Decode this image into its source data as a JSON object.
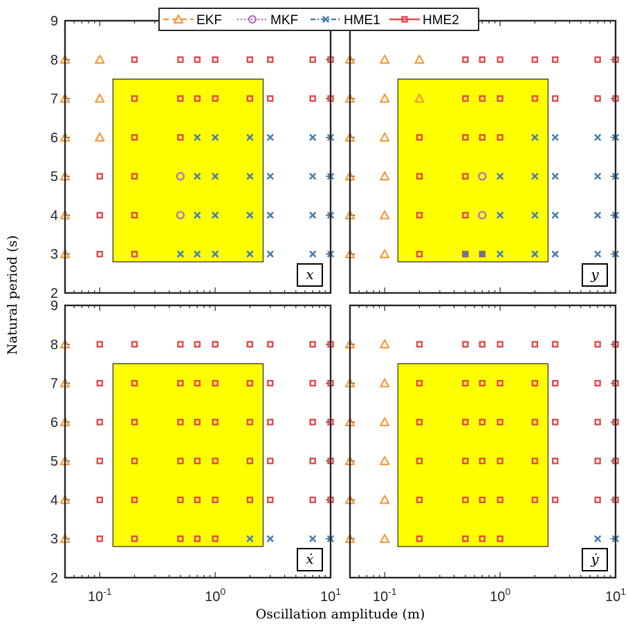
{
  "chart_data": {
    "type": "scatter",
    "layout": "2x2 panels",
    "xlabel": "Oscillation amplitude (m)",
    "ylabel": "Natural period (s)",
    "xscale": "log",
    "xlim": [
      0.05,
      10
    ],
    "ylim": [
      2,
      9
    ],
    "xticks": [
      0.1,
      1,
      10
    ],
    "xtick_labels": [
      {
        "base": "10",
        "exp": "-1"
      },
      {
        "base": "10",
        "exp": "0"
      },
      {
        "base": "10",
        "exp": "1"
      }
    ],
    "yticks": [
      2,
      3,
      4,
      5,
      6,
      7,
      8,
      9
    ],
    "legend": {
      "placement": "top-center",
      "entries": [
        {
          "key": "EKF",
          "label": "EKF",
          "color": "#F59A3E",
          "marker": "triangle",
          "line": "dashed"
        },
        {
          "key": "MKF",
          "label": "MKF",
          "color": "#B46EC0",
          "marker": "circle",
          "line": "dotted"
        },
        {
          "key": "HME1",
          "label": "HME1",
          "color": "#4A7FAE",
          "marker": "x",
          "line": "dashdot"
        },
        {
          "key": "HME2",
          "label": "HME2",
          "color": "#E04A4A",
          "marker": "square",
          "line": "solid"
        }
      ]
    },
    "region": {
      "x": [
        0.13,
        2.6
      ],
      "y": [
        2.8,
        7.5
      ],
      "color": "#FFFF00"
    },
    "panels": [
      {
        "label": "x",
        "points": {
          "EKF": [
            [
              0.05,
              3
            ],
            [
              0.05,
              4
            ],
            [
              0.05,
              5
            ],
            [
              0.05,
              6
            ],
            [
              0.05,
              7
            ],
            [
              0.05,
              8
            ],
            [
              0.1,
              6
            ],
            [
              0.1,
              7
            ],
            [
              0.1,
              8
            ]
          ],
          "MKF": [
            [
              0.5,
              4
            ],
            [
              0.5,
              5
            ]
          ],
          "HME1": [
            [
              0.5,
              3
            ],
            [
              0.7,
              3
            ],
            [
              1,
              3
            ],
            [
              2,
              3
            ],
            [
              3,
              3
            ],
            [
              7,
              3
            ],
            [
              10,
              3
            ],
            [
              0.7,
              4
            ],
            [
              1,
              4
            ],
            [
              2,
              4
            ],
            [
              3,
              4
            ],
            [
              7,
              4
            ],
            [
              10,
              4
            ],
            [
              0.7,
              5
            ],
            [
              1,
              5
            ],
            [
              2,
              5
            ],
            [
              3,
              5
            ],
            [
              7,
              5
            ],
            [
              10,
              5
            ],
            [
              0.7,
              6
            ],
            [
              1,
              6
            ],
            [
              2,
              6
            ],
            [
              3,
              6
            ],
            [
              7,
              6
            ],
            [
              10,
              6
            ]
          ],
          "HME2": [
            [
              0.1,
              3
            ],
            [
              0.2,
              3
            ],
            [
              0.1,
              4
            ],
            [
              0.2,
              4
            ],
            [
              0.1,
              5
            ],
            [
              0.2,
              5
            ],
            [
              0.2,
              6
            ],
            [
              0.5,
              6
            ],
            [
              0.2,
              7
            ],
            [
              0.5,
              7
            ],
            [
              0.7,
              7
            ],
            [
              1,
              7
            ],
            [
              2,
              7
            ],
            [
              3,
              7
            ],
            [
              7,
              7
            ],
            [
              10,
              7
            ],
            [
              0.2,
              8
            ],
            [
              0.5,
              8
            ],
            [
              0.7,
              8
            ],
            [
              1,
              8
            ],
            [
              2,
              8
            ],
            [
              3,
              8
            ],
            [
              7,
              8
            ],
            [
              10,
              8
            ]
          ]
        }
      },
      {
        "label": "y",
        "points": {
          "EKF": [
            [
              0.05,
              3
            ],
            [
              0.05,
              4
            ],
            [
              0.05,
              5
            ],
            [
              0.05,
              6
            ],
            [
              0.05,
              7
            ],
            [
              0.05,
              8
            ],
            [
              0.1,
              3
            ],
            [
              0.1,
              4
            ],
            [
              0.1,
              5
            ],
            [
              0.1,
              6
            ],
            [
              0.1,
              7
            ],
            [
              0.1,
              8
            ],
            [
              0.2,
              7
            ],
            [
              0.2,
              8
            ]
          ],
          "MKF": [
            [
              0.7,
              4
            ],
            [
              0.7,
              5
            ]
          ],
          "HME1": [
            [
              0.5,
              3
            ],
            [
              0.7,
              3
            ],
            [
              1,
              3
            ],
            [
              2,
              3
            ],
            [
              3,
              3
            ],
            [
              7,
              3
            ],
            [
              10,
              3
            ],
            [
              1,
              4
            ],
            [
              2,
              4
            ],
            [
              3,
              4
            ],
            [
              7,
              4
            ],
            [
              10,
              4
            ],
            [
              1,
              5
            ],
            [
              2,
              5
            ],
            [
              3,
              5
            ],
            [
              7,
              5
            ],
            [
              10,
              5
            ],
            [
              2,
              6
            ],
            [
              3,
              6
            ],
            [
              7,
              6
            ],
            [
              10,
              6
            ]
          ],
          "HME2": [
            [
              0.2,
              3
            ],
            [
              0.5,
              3
            ],
            [
              0.7,
              3
            ],
            [
              0.2,
              4
            ],
            [
              0.5,
              4
            ],
            [
              0.2,
              5
            ],
            [
              0.5,
              5
            ],
            [
              0.2,
              6
            ],
            [
              0.5,
              6
            ],
            [
              0.7,
              6
            ],
            [
              1,
              6
            ],
            [
              0.5,
              7
            ],
            [
              0.7,
              7
            ],
            [
              1,
              7
            ],
            [
              2,
              7
            ],
            [
              3,
              7
            ],
            [
              7,
              7
            ],
            [
              10,
              7
            ],
            [
              0.5,
              8
            ],
            [
              0.7,
              8
            ],
            [
              1,
              8
            ],
            [
              2,
              8
            ],
            [
              3,
              8
            ],
            [
              7,
              8
            ],
            [
              10,
              8
            ]
          ]
        }
      },
      {
        "label": "ẋ",
        "points": {
          "EKF": [
            [
              0.05,
              3
            ],
            [
              0.05,
              4
            ],
            [
              0.05,
              5
            ],
            [
              0.05,
              6
            ],
            [
              0.05,
              7
            ],
            [
              0.05,
              8
            ]
          ],
          "MKF": [],
          "HME1": [
            [
              2,
              3
            ],
            [
              3,
              3
            ],
            [
              7,
              3
            ],
            [
              10,
              3
            ]
          ],
          "HME2": [
            [
              0.1,
              3
            ],
            [
              0.2,
              3
            ],
            [
              0.5,
              3
            ],
            [
              0.7,
              3
            ],
            [
              1,
              3
            ],
            [
              0.1,
              4
            ],
            [
              0.2,
              4
            ],
            [
              0.5,
              4
            ],
            [
              0.7,
              4
            ],
            [
              1,
              4
            ],
            [
              2,
              4
            ],
            [
              3,
              4
            ],
            [
              7,
              4
            ],
            [
              10,
              4
            ],
            [
              0.1,
              5
            ],
            [
              0.2,
              5
            ],
            [
              0.5,
              5
            ],
            [
              0.7,
              5
            ],
            [
              1,
              5
            ],
            [
              2,
              5
            ],
            [
              3,
              5
            ],
            [
              7,
              5
            ],
            [
              10,
              5
            ],
            [
              0.1,
              6
            ],
            [
              0.2,
              6
            ],
            [
              0.5,
              6
            ],
            [
              0.7,
              6
            ],
            [
              1,
              6
            ],
            [
              2,
              6
            ],
            [
              3,
              6
            ],
            [
              7,
              6
            ],
            [
              10,
              6
            ],
            [
              0.1,
              7
            ],
            [
              0.2,
              7
            ],
            [
              0.5,
              7
            ],
            [
              0.7,
              7
            ],
            [
              1,
              7
            ],
            [
              2,
              7
            ],
            [
              3,
              7
            ],
            [
              7,
              7
            ],
            [
              10,
              7
            ],
            [
              0.1,
              8
            ],
            [
              0.2,
              8
            ],
            [
              0.5,
              8
            ],
            [
              0.7,
              8
            ],
            [
              1,
              8
            ],
            [
              2,
              8
            ],
            [
              3,
              8
            ],
            [
              7,
              8
            ],
            [
              10,
              8
            ]
          ]
        }
      },
      {
        "label": "ẏ",
        "points": {
          "EKF": [
            [
              0.05,
              3
            ],
            [
              0.05,
              4
            ],
            [
              0.05,
              5
            ],
            [
              0.05,
              6
            ],
            [
              0.05,
              7
            ],
            [
              0.05,
              8
            ],
            [
              0.1,
              3
            ],
            [
              0.1,
              4
            ],
            [
              0.1,
              5
            ],
            [
              0.1,
              6
            ],
            [
              0.1,
              7
            ],
            [
              0.1,
              8
            ]
          ],
          "MKF": [],
          "HME1": [
            [
              7,
              3
            ],
            [
              10,
              3
            ]
          ],
          "HME2": [
            [
              0.2,
              3
            ],
            [
              0.5,
              3
            ],
            [
              0.7,
              3
            ],
            [
              1,
              3
            ],
            [
              0.2,
              4
            ],
            [
              0.5,
              4
            ],
            [
              0.7,
              4
            ],
            [
              1,
              4
            ],
            [
              2,
              4
            ],
            [
              3,
              4
            ],
            [
              7,
              4
            ],
            [
              10,
              4
            ],
            [
              0.2,
              5
            ],
            [
              0.5,
              5
            ],
            [
              0.7,
              5
            ],
            [
              1,
              5
            ],
            [
              2,
              5
            ],
            [
              3,
              5
            ],
            [
              7,
              5
            ],
            [
              10,
              5
            ],
            [
              0.2,
              6
            ],
            [
              0.5,
              6
            ],
            [
              0.7,
              6
            ],
            [
              1,
              6
            ],
            [
              2,
              6
            ],
            [
              3,
              6
            ],
            [
              7,
              6
            ],
            [
              10,
              6
            ],
            [
              0.2,
              7
            ],
            [
              0.5,
              7
            ],
            [
              0.7,
              7
            ],
            [
              1,
              7
            ],
            [
              2,
              7
            ],
            [
              3,
              7
            ],
            [
              7,
              7
            ],
            [
              10,
              7
            ],
            [
              0.2,
              8
            ],
            [
              0.5,
              8
            ],
            [
              0.7,
              8
            ],
            [
              1,
              8
            ],
            [
              2,
              8
            ],
            [
              3,
              8
            ],
            [
              7,
              8
            ],
            [
              10,
              8
            ]
          ]
        }
      }
    ]
  }
}
